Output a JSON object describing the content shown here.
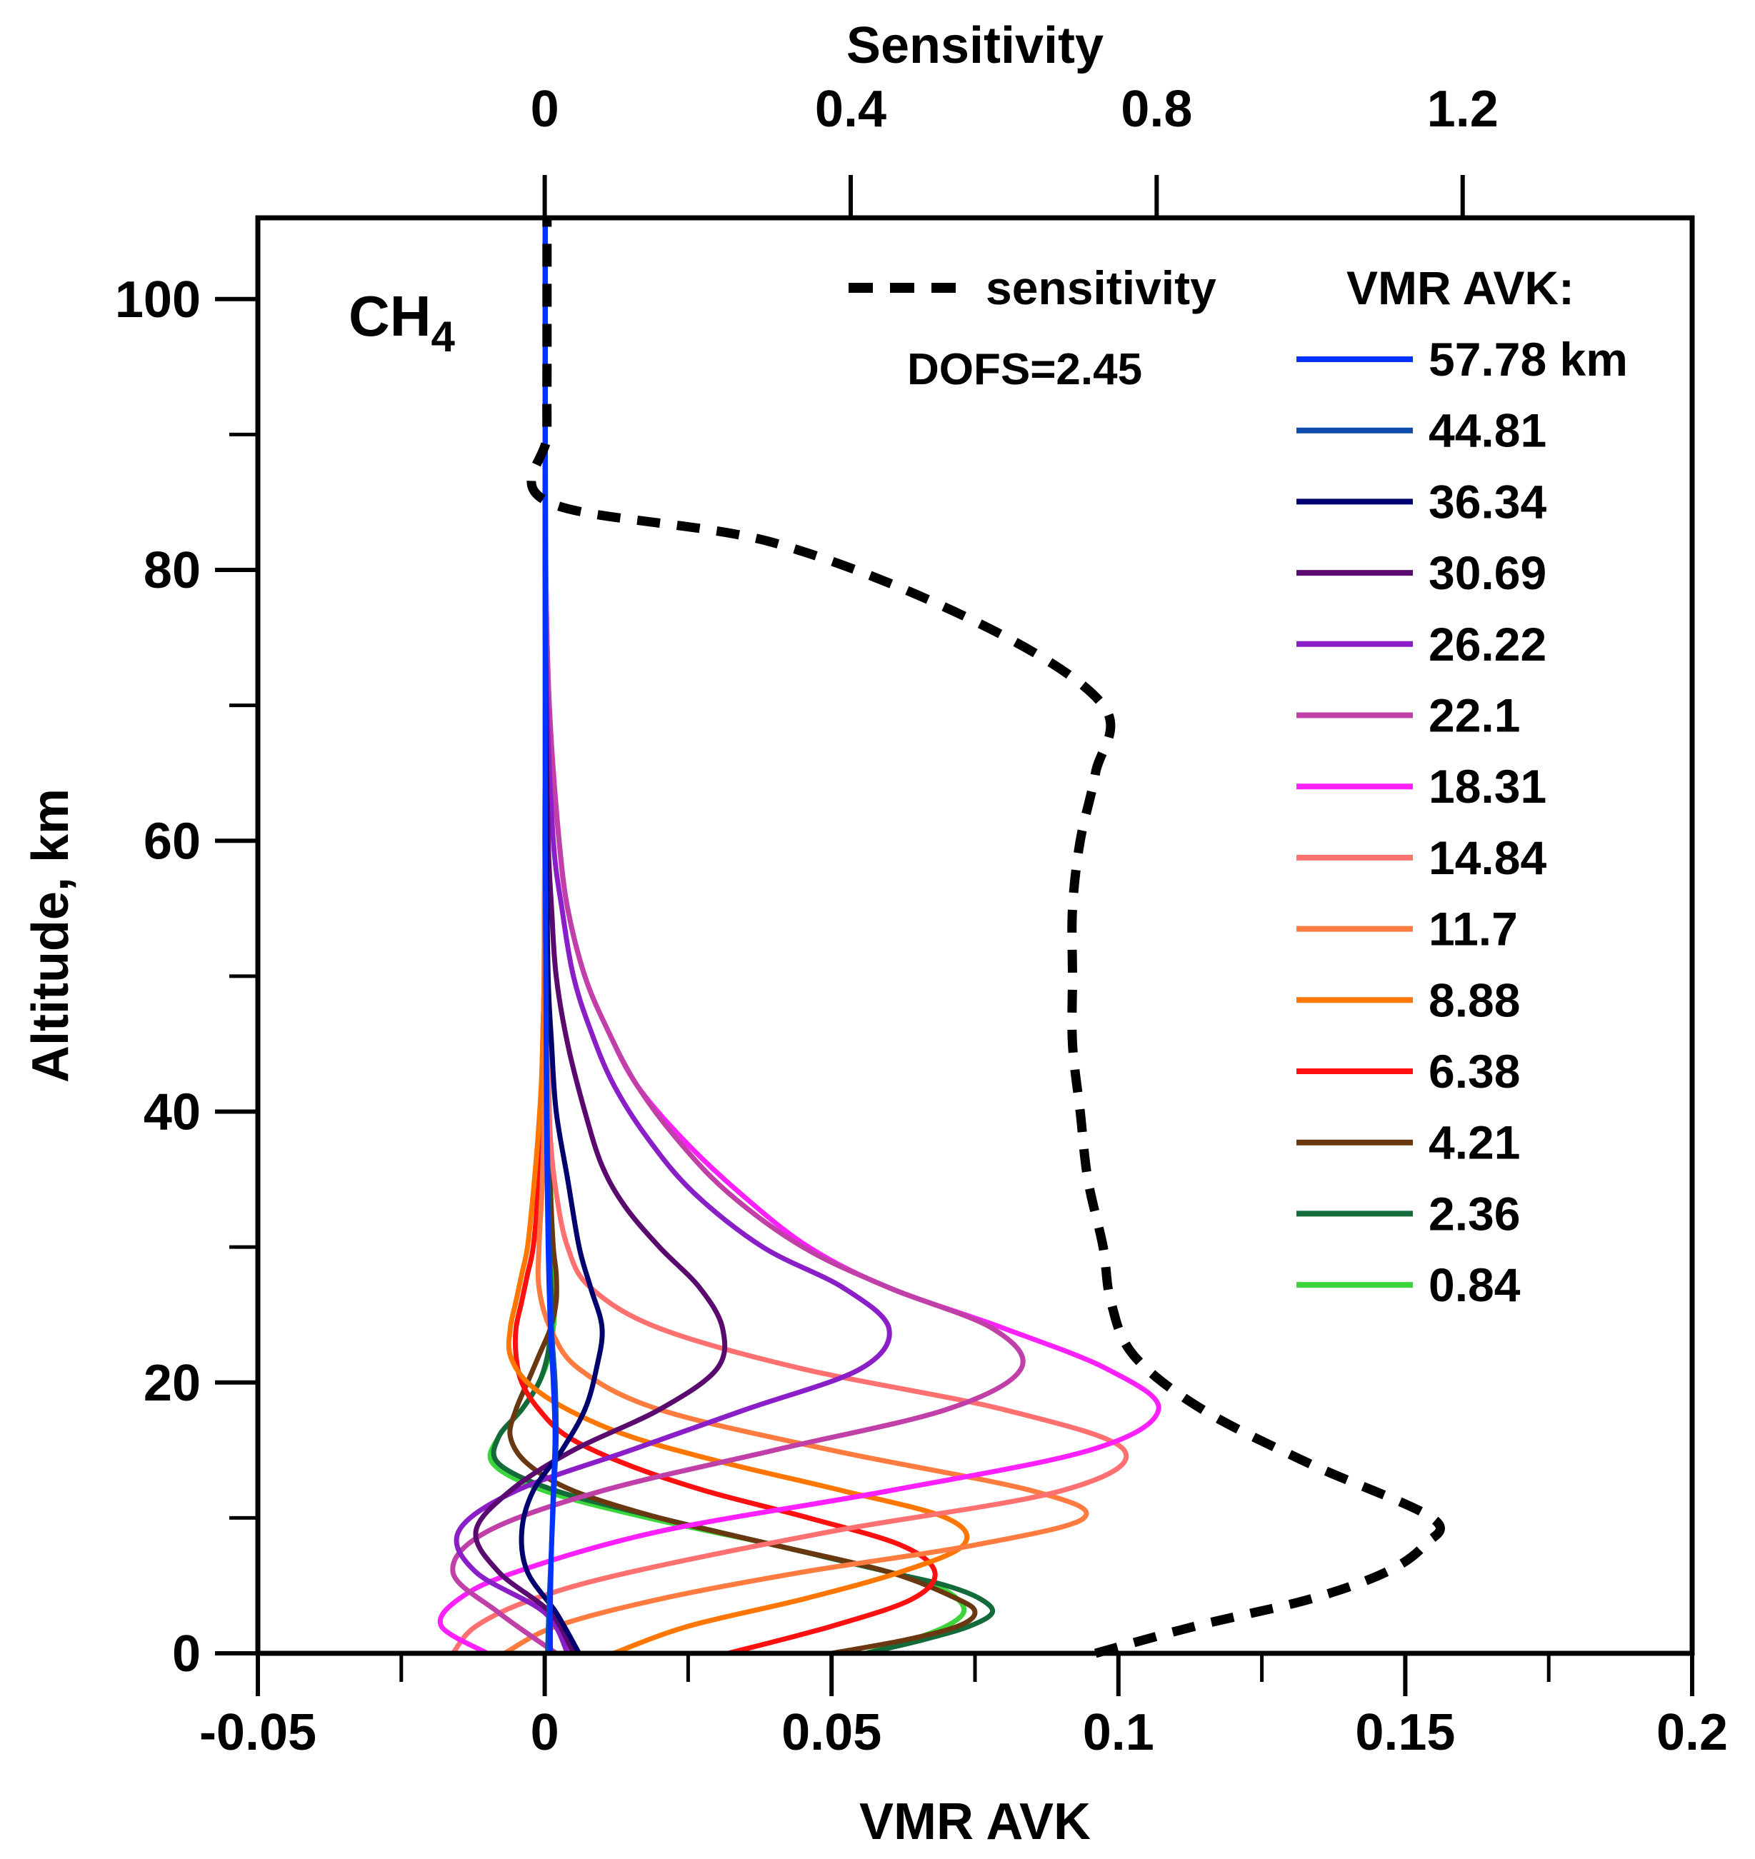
{
  "chart_data": {
    "type": "line",
    "title": "",
    "species": "CH",
    "species_subscript": "4",
    "annotation": "DOFS=2.45",
    "xlabel": "VMR AVK",
    "x2label": "Sensitivity",
    "ylabel": "Altitude, km",
    "xlim": [
      -0.05,
      0.2
    ],
    "x2lim": [
      -0.375,
      1.5
    ],
    "ylim": [
      0,
      106
    ],
    "x_ticks": [
      "-0.05",
      "0",
      "0.05",
      "0.1",
      "0.15",
      "0.2"
    ],
    "x2_ticks": [
      "0",
      "0.4",
      "0.8",
      "1.2"
    ],
    "y_ticks": [
      "0",
      "20",
      "40",
      "60",
      "80",
      "100"
    ],
    "legend_title": "VMR AVK:",
    "sensitivity_label": "sensitivity",
    "sensitivity_color": "#000000",
    "sensitivity": {
      "name": "sensitivity",
      "y": [
        0,
        2,
        4,
        6,
        8,
        10,
        14,
        18,
        22,
        26,
        30,
        35,
        40,
        45,
        50,
        55,
        60,
        65,
        70,
        76,
        82,
        85,
        90,
        96,
        102,
        106
      ],
      "x": [
        0.72,
        0.85,
        1.0,
        1.1,
        1.15,
        1.16,
        1.0,
        0.86,
        0.77,
        0.74,
        0.73,
        0.71,
        0.7,
        0.69,
        0.69,
        0.69,
        0.7,
        0.72,
        0.73,
        0.57,
        0.3,
        0.005,
        0.003,
        0.003,
        0.003,
        0.003
      ]
    },
    "series": [
      {
        "name": "57.78 km",
        "color": "#0033ff",
        "y": [
          0,
          4,
          8,
          12,
          16,
          20,
          24,
          30,
          40,
          50,
          60,
          75,
          90,
          106
        ],
        "x": [
          0.001,
          0.001,
          0.0012,
          0.0015,
          0.0018,
          0.0015,
          0.001,
          0.0006,
          0.0003,
          0.0002,
          0.0001,
          0.0001,
          0.0001,
          0.0001
        ]
      },
      {
        "name": "44.81",
        "color": "#0d4dad",
        "y": [
          0,
          4,
          8,
          12,
          16,
          20,
          24,
          30,
          40,
          50,
          60,
          75,
          90,
          106
        ],
        "x": [
          0.0005,
          0.0008,
          0.0012,
          0.0016,
          0.002,
          0.0018,
          0.0012,
          0.0008,
          0.0004,
          0.0002,
          0.0001,
          0.0001,
          0.0001,
          0.0001
        ]
      },
      {
        "name": "36.34",
        "color": "#00006e",
        "y": [
          0,
          3,
          6,
          9,
          12,
          15,
          18,
          21,
          24,
          27,
          30,
          35,
          40,
          45,
          50,
          60,
          75,
          90,
          106
        ],
        "x": [
          0.006,
          0.002,
          -0.003,
          -0.004,
          -0.002,
          0.003,
          0.007,
          0.009,
          0.01,
          0.008,
          0.006,
          0.004,
          0.002,
          0.0012,
          0.0006,
          0.0003,
          0.0001,
          0.0001,
          0.0001
        ]
      },
      {
        "name": "30.69",
        "color": "#5a0a6e",
        "y": [
          0,
          3,
          6,
          9,
          12,
          15,
          18,
          21,
          24,
          27,
          30,
          33,
          36,
          40,
          45,
          50,
          55,
          60,
          70,
          80,
          90,
          106
        ],
        "x": [
          0.005,
          0.001,
          -0.008,
          -0.012,
          -0.006,
          0.005,
          0.02,
          0.03,
          0.031,
          0.027,
          0.02,
          0.014,
          0.01,
          0.007,
          0.004,
          0.002,
          0.0012,
          0.0006,
          0.0002,
          0.0001,
          0.0001,
          0.0001
        ]
      },
      {
        "name": "26.22",
        "color": "#8a1fc8",
        "y": [
          0,
          3,
          6,
          9,
          12,
          15,
          18,
          21,
          24,
          27,
          30,
          34,
          38,
          42,
          46,
          50,
          55,
          60,
          70,
          80,
          90,
          106
        ],
        "x": [
          0.004,
          0.0,
          -0.012,
          -0.015,
          -0.005,
          0.015,
          0.035,
          0.055,
          0.06,
          0.052,
          0.038,
          0.026,
          0.018,
          0.012,
          0.008,
          0.005,
          0.003,
          0.0015,
          0.0004,
          0.0001,
          0.0001,
          0.0001
        ]
      },
      {
        "name": "22.1",
        "color": "#c040a8",
        "y": [
          0,
          3,
          6,
          9,
          12,
          15,
          18,
          21,
          24,
          27,
          30,
          34,
          38,
          42,
          46,
          50,
          55,
          60,
          65,
          70,
          75,
          80,
          90,
          106
        ],
        "x": [
          0.002,
          -0.008,
          -0.016,
          -0.01,
          0.01,
          0.04,
          0.07,
          0.083,
          0.078,
          0.06,
          0.045,
          0.032,
          0.023,
          0.016,
          0.011,
          0.007,
          0.004,
          0.0025,
          0.0015,
          0.0008,
          0.0004,
          0.0002,
          0.0001,
          0.0001
        ]
      },
      {
        "name": "18.31",
        "color": "#ff20ff",
        "y": [
          0,
          2,
          4,
          6,
          9,
          12,
          15,
          18,
          21,
          24,
          27,
          30,
          34,
          38,
          42,
          46,
          50,
          55,
          60,
          70,
          80,
          90,
          106
        ],
        "x": [
          -0.01,
          -0.018,
          -0.015,
          -0.005,
          0.02,
          0.06,
          0.095,
          0.107,
          0.098,
          0.08,
          0.06,
          0.046,
          0.034,
          0.024,
          0.016,
          0.011,
          0.007,
          0.004,
          0.0025,
          0.0008,
          0.0002,
          0.0001,
          0.0001
        ]
      },
      {
        "name": "14.84",
        "color": "#ff7070",
        "y": [
          0,
          2,
          4,
          6,
          9,
          12,
          15,
          18,
          21,
          24,
          27,
          30,
          34,
          38,
          42,
          46,
          50,
          60,
          70,
          80,
          90,
          106
        ],
        "x": [
          -0.016,
          -0.012,
          -0.002,
          0.015,
          0.05,
          0.09,
          0.101,
          0.08,
          0.045,
          0.02,
          0.008,
          0.004,
          0.002,
          0.001,
          0.0007,
          0.0005,
          0.0003,
          0.0002,
          0.0001,
          0.0001,
          0.0001,
          0.0001
        ]
      },
      {
        "name": "11.7",
        "color": "#ff7b40",
        "y": [
          0,
          2,
          4,
          6,
          8,
          10,
          12,
          15,
          18,
          21,
          24,
          27,
          30,
          34,
          38,
          42,
          46,
          50,
          60,
          70,
          80,
          90,
          106
        ],
        "x": [
          -0.007,
          0.002,
          0.02,
          0.045,
          0.075,
          0.094,
          0.085,
          0.05,
          0.02,
          0.006,
          0.001,
          -0.001,
          -0.001,
          -0.0005,
          -0.0002,
          0.0,
          0.0001,
          0.0001,
          0.0001,
          0.0001,
          0.0001,
          0.0001,
          0.0001
        ]
      },
      {
        "name": "8.88",
        "color": "#ff7700",
        "y": [
          0,
          2,
          4,
          6,
          8,
          10,
          12,
          14,
          16,
          18,
          20,
          22,
          24,
          26,
          28,
          30,
          34,
          38,
          42,
          46,
          50,
          60,
          70,
          80,
          90,
          106
        ],
        "x": [
          0.012,
          0.025,
          0.045,
          0.062,
          0.073,
          0.07,
          0.052,
          0.032,
          0.015,
          0.004,
          -0.003,
          -0.006,
          -0.006,
          -0.005,
          -0.004,
          -0.003,
          -0.002,
          -0.0012,
          -0.0006,
          -0.0003,
          -0.0001,
          0.0,
          0.0001,
          0.0001,
          0.0001,
          0.0001
        ]
      },
      {
        "name": "6.38",
        "color": "#ff1010",
        "y": [
          0,
          2,
          4,
          6,
          8,
          10,
          12,
          14,
          16,
          18,
          20,
          22,
          24,
          26,
          28,
          30,
          34,
          38,
          42,
          46,
          50,
          60,
          70,
          80,
          90,
          106
        ],
        "x": [
          0.032,
          0.05,
          0.064,
          0.068,
          0.062,
          0.046,
          0.028,
          0.014,
          0.004,
          -0.001,
          -0.004,
          -0.005,
          -0.005,
          -0.004,
          -0.003,
          -0.002,
          -0.0012,
          -0.0008,
          -0.0005,
          -0.0003,
          -0.0001,
          0.0,
          0.0001,
          0.0001,
          0.0001,
          0.0001
        ]
      },
      {
        "name": "4.21",
        "color": "#6a3810",
        "y": [
          0,
          1,
          2,
          3,
          4,
          6,
          8,
          10,
          12,
          14,
          16,
          18,
          20,
          22,
          24,
          26,
          28,
          30,
          34,
          38,
          42,
          46,
          50,
          60,
          70,
          80,
          90,
          106
        ],
        "x": [
          0.05,
          0.063,
          0.072,
          0.075,
          0.072,
          0.06,
          0.04,
          0.02,
          0.005,
          -0.003,
          -0.006,
          -0.005,
          -0.003,
          -0.001,
          0.001,
          0.002,
          0.002,
          0.0015,
          0.001,
          0.0006,
          0.0003,
          0.0002,
          0.0001,
          0.0001,
          0.0001,
          0.0001,
          0.0001,
          0.0001
        ]
      },
      {
        "name": "2.36",
        "color": "#136b3a",
        "y": [
          0,
          1,
          2,
          3,
          4,
          5,
          6,
          8,
          10,
          12,
          14,
          16,
          18,
          20,
          22,
          24,
          26,
          28,
          30,
          35,
          40,
          50,
          60,
          70,
          80,
          90,
          106
        ],
        "x": [
          0.056,
          0.066,
          0.074,
          0.078,
          0.076,
          0.07,
          0.06,
          0.04,
          0.02,
          0.002,
          -0.008,
          -0.008,
          -0.004,
          -0.001,
          0.0005,
          0.001,
          0.0012,
          0.001,
          0.0008,
          0.0005,
          0.0003,
          0.0001,
          0.0001,
          0.0001,
          0.0001,
          0.0001,
          0.0001
        ]
      },
      {
        "name": "0.84",
        "color": "#3cd63c",
        "y": [
          0,
          1,
          2,
          3,
          4,
          5,
          6,
          8,
          10,
          12,
          14,
          16,
          18,
          20,
          22,
          24,
          26,
          28,
          30,
          35,
          40,
          50,
          60,
          70,
          80,
          90,
          106
        ],
        "x": [
          0.056,
          0.064,
          0.07,
          0.073,
          0.072,
          0.068,
          0.06,
          0.04,
          0.018,
          0.0,
          -0.009,
          -0.008,
          -0.004,
          -0.001,
          0.0008,
          0.0015,
          0.0018,
          0.0016,
          0.0014,
          0.001,
          0.0008,
          0.0005,
          0.0003,
          0.0002,
          0.0001,
          0.0001,
          0.0001
        ]
      }
    ]
  }
}
